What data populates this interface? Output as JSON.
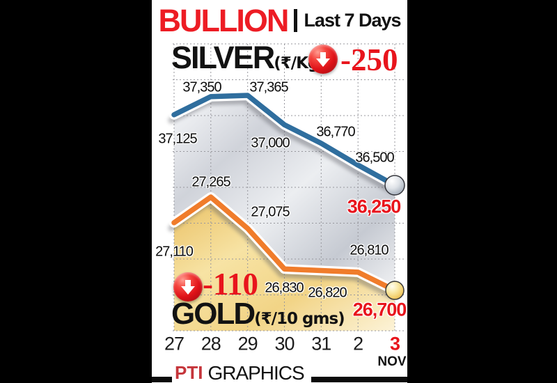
{
  "header": {
    "title": "BULLION",
    "separator": "|",
    "subtitle": "Last 7 Days"
  },
  "silver": {
    "label": "SILVER",
    "unit": "(₹/Kg)",
    "change": "-250"
  },
  "gold": {
    "label": "GOLD",
    "unit": "(₹/10 gms)",
    "change": "-110"
  },
  "labels": {
    "silver": [
      "37,125",
      "37,350",
      "37,365",
      "37,000",
      "36,770",
      "36,500",
      "36,250"
    ],
    "gold": [
      "27,110",
      "27,265",
      "27,075",
      "26,830",
      "26,820",
      "26,810",
      "26,700"
    ]
  },
  "axis": {
    "dates": [
      "27",
      "28",
      "29",
      "30",
      "31",
      "2",
      "3"
    ],
    "month": "NOV",
    "highlight_index": 6
  },
  "footer": {
    "logo": "PTI",
    "label": "GRAPHICS"
  },
  "colors": {
    "title_red": "#ed1c24",
    "accent_red": "#e8141c",
    "silver_line": "#2f6e9e",
    "gold_line": "#f07c2b"
  },
  "chart_data": {
    "type": "line",
    "title": "BULLION | Last 7 Days",
    "x": [
      "27",
      "28",
      "29",
      "30",
      "31",
      "2",
      "3"
    ],
    "month_label": "NOV",
    "grid": "dashed",
    "series": [
      {
        "name": "Silver (₹/Kg)",
        "color": "#2f6e9e",
        "values": [
          37125,
          37350,
          37365,
          37000,
          36770,
          36500,
          36250
        ],
        "change": -250,
        "closing": 36250
      },
      {
        "name": "Gold (₹/10 gms)",
        "color": "#f07c2b",
        "values": [
          27110,
          27265,
          27075,
          26830,
          26820,
          26810,
          26700
        ],
        "change": -110,
        "closing": 26700
      }
    ]
  }
}
